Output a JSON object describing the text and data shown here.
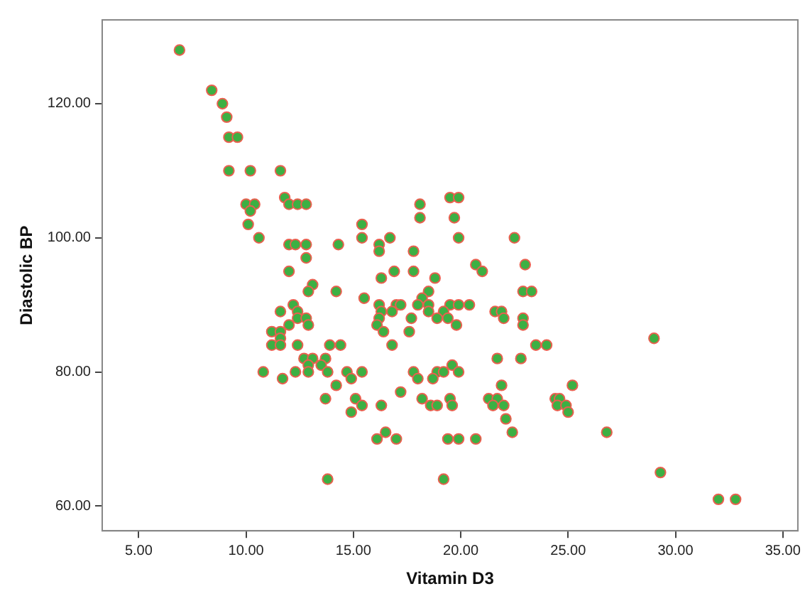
{
  "chart_data": {
    "type": "scatter",
    "xlabel": "Vitamin D3",
    "ylabel": "Diastolic BP",
    "xlim": [
      3.3,
      35.7
    ],
    "ylim": [
      56.3,
      132.5
    ],
    "xticks": [
      {
        "value": 5,
        "label": "5.00"
      },
      {
        "value": 10,
        "label": "10.00"
      },
      {
        "value": 15,
        "label": "15.00"
      },
      {
        "value": 20,
        "label": "20.00"
      },
      {
        "value": 25,
        "label": "25.00"
      },
      {
        "value": 30,
        "label": "30.00"
      },
      {
        "value": 35,
        "label": "35.00"
      }
    ],
    "yticks": [
      {
        "value": 60,
        "label": "60.00"
      },
      {
        "value": 80,
        "label": "80.00"
      },
      {
        "value": 100,
        "label": "100.00"
      },
      {
        "value": 120,
        "label": "120.00"
      }
    ],
    "marker": "circle",
    "legend": false,
    "series": [
      {
        "color": "#3cb043",
        "x": [
          6.9,
          8.4,
          8.9,
          9.1,
          9.2,
          9.6,
          9.2,
          10.2,
          11.6,
          11.8,
          10.0,
          10.4,
          10.2,
          12.0,
          12.4,
          12.8,
          10.1,
          10.6,
          12.0,
          12.3,
          12.8,
          12.8,
          12.0,
          13.1,
          14.3,
          12.9,
          14.2,
          12.2,
          11.6,
          12.4,
          12.0,
          12.4,
          12.8,
          12.9,
          11.2,
          11.6,
          11.6,
          11.2,
          11.6,
          12.4,
          13.9,
          12.7,
          13.1,
          13.7,
          12.9,
          13.5,
          10.8,
          12.3,
          12.9,
          13.8,
          11.7,
          14.2,
          13.7,
          13.8,
          19.5,
          19.9,
          18.1,
          18.1,
          19.7,
          15.4,
          15.4,
          16.7,
          19.9,
          22.5,
          16.2,
          16.2,
          17.8,
          20.7,
          21.0,
          23.0,
          16.9,
          17.8,
          16.3,
          18.8,
          15.5,
          18.5,
          18.2,
          22.9,
          23.3,
          16.2,
          17.0,
          17.2,
          18.0,
          18.5,
          19.5,
          19.9,
          20.4,
          16.3,
          16.8,
          18.5,
          19.2,
          21.6,
          21.9,
          16.2,
          17.7,
          18.9,
          19.4,
          22.0,
          22.9,
          16.1,
          19.8,
          22.9,
          16.4,
          17.6,
          14.4,
          16.8,
          23.5,
          24.0,
          14.7,
          15.4,
          14.9,
          17.8,
          18.0,
          18.9,
          19.2,
          19.6,
          19.9,
          18.7,
          17.2,
          21.7,
          22.8,
          21.9,
          15.1,
          15.4,
          14.9,
          16.3,
          18.2,
          18.6,
          18.9,
          19.5,
          19.6,
          21.3,
          21.7,
          21.5,
          22.0,
          22.1,
          22.4,
          16.5,
          16.1,
          17.0,
          19.4,
          19.9,
          20.7,
          19.2,
          29.0,
          25.2,
          24.4,
          24.6,
          24.5,
          24.9,
          25.0,
          26.8,
          29.3,
          32.0,
          32.8
        ],
        "values": [
          128,
          122,
          120,
          118,
          115,
          115,
          110,
          110,
          110,
          106,
          105,
          105,
          104,
          105,
          105,
          105,
          102,
          100,
          99,
          99,
          99,
          97,
          95,
          93,
          99,
          92,
          92,
          90,
          89,
          89,
          87,
          88,
          88,
          87,
          86,
          86,
          85,
          84,
          84,
          84,
          84,
          82,
          82,
          82,
          81,
          81,
          80,
          80,
          80,
          80,
          79,
          78,
          76,
          64,
          106,
          106,
          105,
          103,
          103,
          102,
          100,
          100,
          100,
          100,
          99,
          98,
          98,
          96,
          95,
          96,
          95,
          95,
          94,
          94,
          91,
          92,
          91,
          92,
          92,
          90,
          90,
          90,
          90,
          90,
          90,
          90,
          90,
          89,
          89,
          89,
          89,
          89,
          89,
          88,
          88,
          88,
          88,
          88,
          88,
          87,
          87,
          87,
          86,
          86,
          84,
          84,
          84,
          84,
          80,
          80,
          79,
          80,
          79,
          80,
          80,
          81,
          80,
          79,
          77,
          82,
          82,
          78,
          76,
          75,
          74,
          75,
          76,
          75,
          75,
          76,
          75,
          76,
          76,
          75,
          75,
          73,
          71,
          71,
          70,
          70,
          70,
          70,
          70,
          64,
          85,
          78,
          76,
          76,
          75,
          75,
          74,
          71,
          65,
          61,
          61
        ]
      }
    ]
  }
}
